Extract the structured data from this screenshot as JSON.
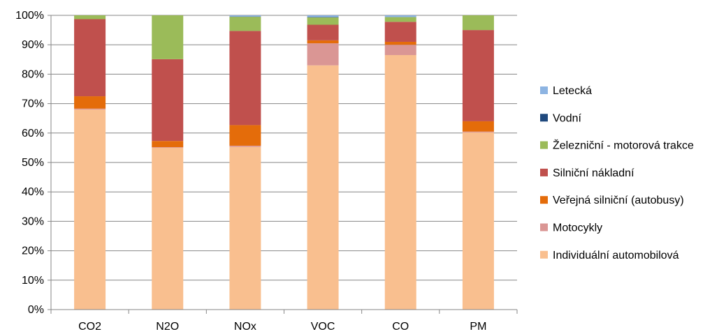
{
  "chart_data": {
    "type": "bar",
    "stacked": true,
    "percent": true,
    "categories": [
      "CO2",
      "N2O",
      "NOx",
      "VOC",
      "CO",
      "PM"
    ],
    "ylim": [
      0,
      100
    ],
    "ytick_labels": [
      "0%",
      "10%",
      "20%",
      "30%",
      "40%",
      "50%",
      "60%",
      "70%",
      "80%",
      "90%",
      "100%"
    ],
    "grid": true,
    "legend_position": "right",
    "series": [
      {
        "name": "Individuální automobilová",
        "color": "#F9BF8F",
        "values": [
          68.0,
          55.0,
          55.3,
          83.0,
          86.5,
          60.2
        ]
      },
      {
        "name": "Motocykly",
        "color": "#DA9694",
        "values": [
          0.3,
          0.2,
          0.4,
          7.5,
          3.5,
          0.3
        ]
      },
      {
        "name": "Veřejná silniční (autobusy)",
        "color": "#E46C0A",
        "values": [
          4.2,
          2.1,
          7.0,
          1.0,
          1.0,
          3.5
        ]
      },
      {
        "name": "Silniční nákladní",
        "color": "#C0504D",
        "values": [
          26.2,
          27.8,
          32.0,
          5.3,
          6.8,
          31.0
        ]
      },
      {
        "name": "Železniční - motorová trakce",
        "color": "#9BBB59",
        "values": [
          1.3,
          14.9,
          4.8,
          2.5,
          1.6,
          5.0
        ]
      },
      {
        "name": "Vodní",
        "color": "#1F497D",
        "values": [
          0.0,
          0.0,
          0.1,
          0.1,
          0.0,
          0.0
        ]
      },
      {
        "name": "Letecká",
        "color": "#8DB4E2",
        "values": [
          0.0,
          0.0,
          0.4,
          0.6,
          0.6,
          0.0
        ]
      }
    ],
    "legend_order": [
      "Letecká",
      "Vodní",
      "Železniční - motorová trakce",
      "Silniční nákladní",
      "Veřejná silniční (autobusy)",
      "Motocykly",
      "Individuální automobilová"
    ]
  }
}
